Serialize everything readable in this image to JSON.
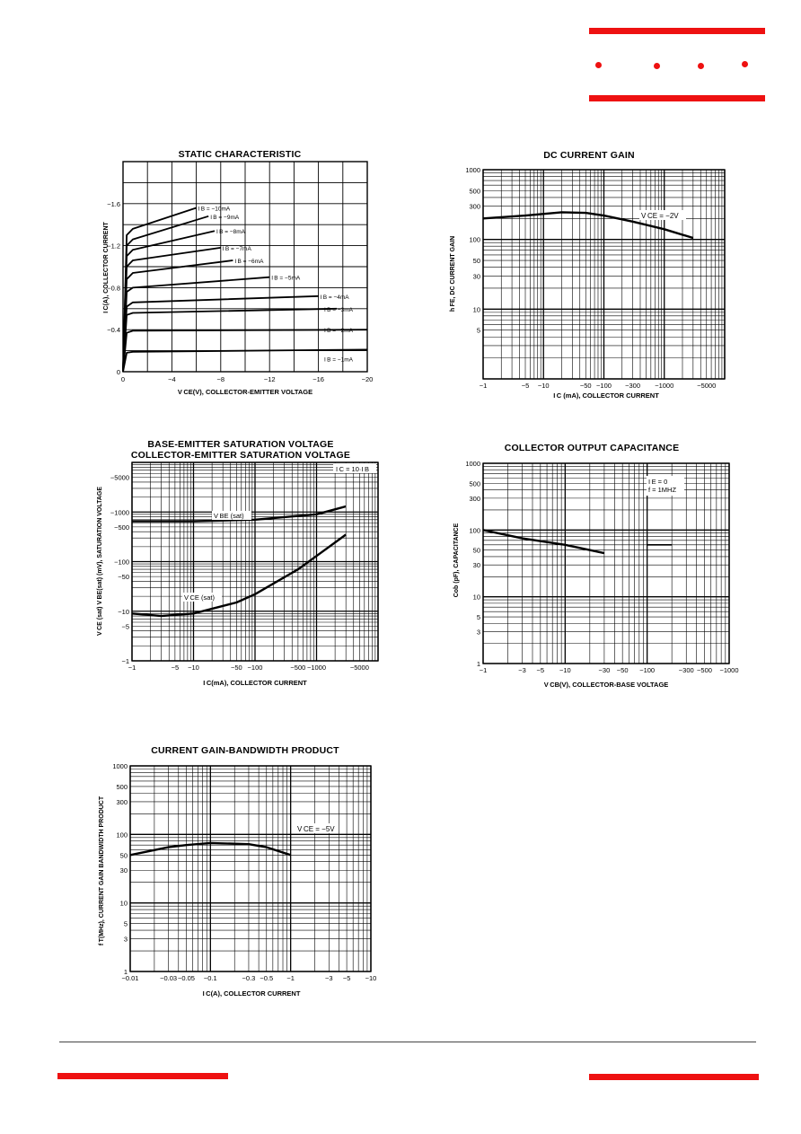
{
  "brand": {
    "accent": "#ee1111"
  },
  "charts": {
    "static": {
      "title": "STATIC CHARACTERISTIC",
      "xlabel": "V CE(V), COLLECTOR-EMITTER VOLTAGE",
      "ylabel": "I C(A), COLLECTOR CURRENT",
      "xticks": [
        "0",
        "−4",
        "−8",
        "−12",
        "−16",
        "−20"
      ],
      "yticks": [
        "0",
        "−0.4",
        "−0.8",
        "−1.2",
        "−1.6"
      ],
      "curve_labels": [
        "I B = −10mA",
        "I B = −9mA",
        "I B = −8mA",
        "I B = −7mA",
        "I B = −6mA",
        "I B = −5mA",
        "I B = −4mA",
        "I B = −3mA",
        "I B = −2mA",
        "I B = −1mA"
      ]
    },
    "hfe": {
      "title": "DC CURRENT GAIN",
      "xlabel": "I C (mA), COLLECTOR CURRENT",
      "ylabel": "h FE, DC CURRENT GAIN",
      "xticks": [
        "−1",
        "−5",
        "−10",
        "−50",
        "−100",
        "−300",
        "−1000",
        "−5000"
      ],
      "yticks": [
        "1000",
        "500",
        "300",
        "100",
        "50",
        "30",
        "10",
        "5"
      ],
      "annotation": "V CE = −2V"
    },
    "sat": {
      "title_line1": "BASE-EMITTER SATURATION VOLTAGE",
      "title_line2": "COLLECTOR-EMITTER SATURATION VOLTAGE",
      "xlabel": "I C(mA), COLLECTOR CURRENT",
      "ylabel": "V CE (sat) V BE(sat) (mV), SATURATION VOLTAGE",
      "xticks": [
        "−1",
        "−5",
        "−10",
        "−50",
        "−100",
        "−500",
        "−1000",
        "−5000"
      ],
      "yticks": [
        "−5000",
        "−1000",
        "−500",
        "−100",
        "−50",
        "−10",
        "−5",
        "−1"
      ],
      "cond": "I C = 10·I B",
      "vbe_label": "V BE (sat)",
      "vce_label": "V CE (sat)"
    },
    "cob": {
      "title": "COLLECTOR OUTPUT CAPACITANCE",
      "xlabel": "V CB(V), COLLECTOR-BASE VOLTAGE",
      "ylabel": "Cob (pF), CAPACITANCE",
      "xticks": [
        "−1",
        "−3",
        "−5",
        "−10",
        "−30",
        "−50",
        "−100",
        "−300",
        "−500",
        "−1000"
      ],
      "yticks": [
        "1000",
        "500",
        "300",
        "100",
        "50",
        "30",
        "10",
        "5",
        "3",
        "1"
      ],
      "cond1": "I E = 0",
      "cond2": "f = 1MHZ"
    },
    "ft": {
      "title": "CURRENT GAIN-BANDWIDTH PRODUCT",
      "xlabel": "I C(A), COLLECTOR CURRENT",
      "ylabel": "f T(MHz), CURRENT GAIN BANDWIDTH PRODUCT",
      "xticks": [
        "−0.01",
        "−0.03",
        "−0.05",
        "−0.1",
        "−0.3",
        "−0.5",
        "−1",
        "−3",
        "−5",
        "−10"
      ],
      "yticks": [
        "1000",
        "500",
        "300",
        "100",
        "50",
        "30",
        "10",
        "5",
        "3",
        "1"
      ],
      "annotation": "V CE = −5V"
    }
  },
  "chart_data": [
    {
      "type": "line",
      "title": "STATIC CHARACTERISTIC",
      "xlabel": "VCE(V), COLLECTOR-EMITTER VOLTAGE",
      "ylabel": "IC(A), COLLECTOR CURRENT",
      "xlim": [
        0,
        -20
      ],
      "ylim": [
        0,
        -2.0
      ],
      "grid": true,
      "series": [
        {
          "name": "IB = -10mA",
          "x": [
            0,
            -0.3,
            -0.8,
            -6
          ],
          "y": [
            0,
            -1.3,
            -1.36,
            -1.56
          ]
        },
        {
          "name": "IB = -9mA",
          "x": [
            0,
            -0.3,
            -0.8,
            -7
          ],
          "y": [
            0,
            -1.2,
            -1.26,
            -1.48
          ]
        },
        {
          "name": "IB = -8mA",
          "x": [
            0,
            -0.3,
            -0.8,
            -7.5
          ],
          "y": [
            0,
            -1.1,
            -1.16,
            -1.34
          ]
        },
        {
          "name": "IB = -7mA",
          "x": [
            0,
            -0.3,
            -0.8,
            -8
          ],
          "y": [
            0,
            -1.0,
            -1.06,
            -1.18
          ]
        },
        {
          "name": "IB = -6mA",
          "x": [
            0,
            -0.3,
            -0.8,
            -9
          ],
          "y": [
            0,
            -0.88,
            -0.94,
            -1.06
          ]
        },
        {
          "name": "IB = -5mA",
          "x": [
            0,
            -0.3,
            -0.8,
            -12
          ],
          "y": [
            0,
            -0.76,
            -0.8,
            -0.9
          ]
        },
        {
          "name": "IB = -4mA",
          "x": [
            0,
            -0.3,
            -0.8,
            -16
          ],
          "y": [
            0,
            -0.62,
            -0.66,
            -0.72
          ]
        },
        {
          "name": "IB = -3mA",
          "x": [
            0,
            -0.3,
            -0.8,
            -17.5
          ],
          "y": [
            0,
            -0.54,
            -0.56,
            -0.6
          ]
        },
        {
          "name": "IB = -2mA",
          "x": [
            0,
            -0.3,
            -0.8,
            -20
          ],
          "y": [
            0,
            -0.37,
            -0.39,
            -0.4
          ]
        },
        {
          "name": "IB = -1mA",
          "x": [
            0,
            -0.3,
            -0.8,
            -20
          ],
          "y": [
            0,
            -0.18,
            -0.19,
            -0.21
          ]
        }
      ]
    },
    {
      "type": "line",
      "title": "DC CURRENT GAIN",
      "xlabel": "IC (mA), COLLECTOR CURRENT",
      "ylabel": "hFE, DC CURRENT GAIN",
      "log_x": true,
      "log_y": true,
      "xlim": [
        -1,
        -10000
      ],
      "ylim": [
        1,
        1000
      ],
      "series": [
        {
          "name": "VCE = -2V",
          "x": [
            -1,
            -5,
            -20,
            -50,
            -100,
            -300,
            -1000,
            -3000
          ],
          "y": [
            200,
            220,
            245,
            240,
            220,
            180,
            140,
            105
          ]
        }
      ]
    },
    {
      "type": "line",
      "title": "BASE-EMITTER SATURATION VOLTAGE / COLLECTOR-EMITTER SATURATION VOLTAGE",
      "xlabel": "IC(mA), COLLECTOR CURRENT",
      "ylabel": "VCE (sat) VBE(sat) (mV), SATURATION VOLTAGE",
      "log_x": true,
      "log_y": true,
      "xlim": [
        -1,
        -10000
      ],
      "ylim": [
        -1,
        -10000
      ],
      "series": [
        {
          "name": "VBE (sat)",
          "x": [
            -1,
            -10,
            -100,
            -1000,
            -3000
          ],
          "y": [
            -650,
            -650,
            -700,
            -900,
            -1300
          ]
        },
        {
          "name": "VCE (sat)",
          "x": [
            -1,
            -3,
            -10,
            -50,
            -100,
            -500,
            -1000,
            -3000
          ],
          "y": [
            -9,
            -8,
            -9,
            -15,
            -22,
            -70,
            -130,
            -350
          ]
        }
      ]
    },
    {
      "type": "line",
      "title": "COLLECTOR OUTPUT CAPACITANCE",
      "xlabel": "VCB(V), COLLECTOR-BASE VOLTAGE",
      "ylabel": "Cob (pF), CAPACITANCE",
      "log_x": true,
      "log_y": true,
      "xlim": [
        -1,
        -1000
      ],
      "ylim": [
        1,
        1000
      ],
      "series": [
        {
          "name": "",
          "x": [
            -1,
            -3,
            -10,
            -30
          ],
          "y": [
            100,
            75,
            60,
            45
          ]
        }
      ]
    },
    {
      "type": "line",
      "title": "CURRENT GAIN-BANDWIDTH PRODUCT",
      "xlabel": "IC(A), COLLECTOR CURRENT",
      "ylabel": "fT(MHz), CURRENT GAIN BANDWIDTH PRODUCT",
      "log_x": true,
      "log_y": true,
      "xlim": [
        -0.01,
        -10
      ],
      "ylim": [
        1,
        1000
      ],
      "series": [
        {
          "name": "VCE = -5V",
          "x": [
            -0.01,
            -0.03,
            -0.05,
            -0.1,
            -0.3,
            -0.5,
            -1
          ],
          "y": [
            50,
            65,
            70,
            75,
            72,
            65,
            50
          ]
        }
      ]
    }
  ]
}
